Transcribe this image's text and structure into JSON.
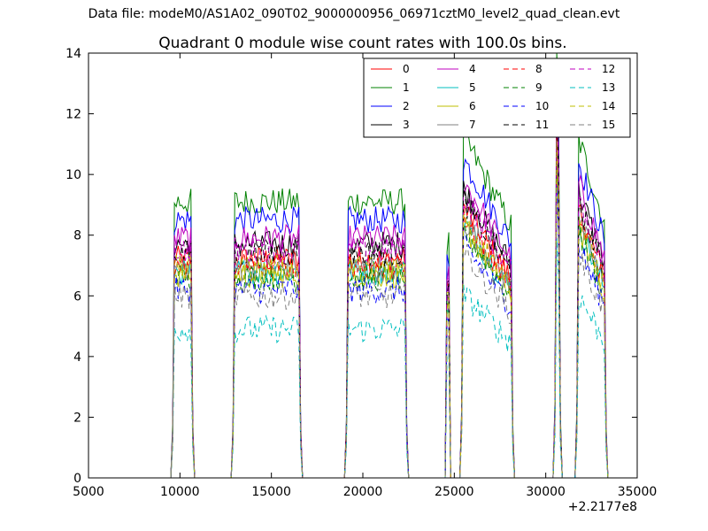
{
  "page": {
    "data_file_label": "Data file: modeM0/AS1A02_090T02_9000000956_06971cztM0_level2_quad_clean.evt"
  },
  "chart_data": {
    "type": "line",
    "title": "Quadrant 0 module wise count rates with 100.0s bins.",
    "xlabel": "",
    "ylabel": "",
    "x_offset_label": "+2.2177e8",
    "xlim": [
      5000,
      35000
    ],
    "ylim": [
      0,
      14
    ],
    "xticks": [
      5000,
      10000,
      15000,
      20000,
      25000,
      30000,
      35000
    ],
    "xtick_labels": [
      "5000",
      "10000",
      "15000",
      "20000",
      "25000",
      "30000",
      "35000"
    ],
    "yticks": [
      0,
      2,
      4,
      6,
      8,
      10,
      12,
      14
    ],
    "ytick_labels": [
      "0",
      "2",
      "4",
      "6",
      "8",
      "10",
      "12",
      "14"
    ],
    "grid": false,
    "legend_position": "top-right",
    "segments": [
      {
        "start": 9600,
        "end": 10700,
        "profile": "flat"
      },
      {
        "start": 12900,
        "end": 16600,
        "profile": "flat"
      },
      {
        "start": 19100,
        "end": 22400,
        "profile": "flat"
      },
      {
        "start": 24600,
        "end": 24700,
        "profile": "spike"
      },
      {
        "start": 25400,
        "end": 28200,
        "profile": "decay"
      },
      {
        "start": 30500,
        "end": 30800,
        "profile": "flare"
      },
      {
        "start": 31700,
        "end": 33300,
        "profile": "decay"
      }
    ],
    "series": [
      {
        "name": "0",
        "color": "#ff0000",
        "dash": "solid",
        "level": 7.2
      },
      {
        "name": "1",
        "color": "#008000",
        "dash": "solid",
        "level": 9.1
      },
      {
        "name": "2",
        "color": "#0000ff",
        "dash": "solid",
        "level": 8.5
      },
      {
        "name": "3",
        "color": "#000000",
        "dash": "solid",
        "level": 7.7
      },
      {
        "name": "4",
        "color": "#bf00bf",
        "dash": "solid",
        "level": 7.9
      },
      {
        "name": "5",
        "color": "#00bfbf",
        "dash": "solid",
        "level": 6.8
      },
      {
        "name": "6",
        "color": "#bfbf00",
        "dash": "solid",
        "level": 6.7
      },
      {
        "name": "7",
        "color": "#808080",
        "dash": "solid",
        "level": 6.9
      },
      {
        "name": "8",
        "color": "#ff0000",
        "dash": "dashed",
        "level": 7.0
      },
      {
        "name": "9",
        "color": "#008000",
        "dash": "dashed",
        "level": 6.6
      },
      {
        "name": "10",
        "color": "#0000ff",
        "dash": "dashed",
        "level": 6.2
      },
      {
        "name": "11",
        "color": "#000000",
        "dash": "dashed",
        "level": 7.4
      },
      {
        "name": "12",
        "color": "#bf00bf",
        "dash": "dashed",
        "level": 7.5
      },
      {
        "name": "13",
        "color": "#00bfbf",
        "dash": "dashed",
        "level": 4.9
      },
      {
        "name": "14",
        "color": "#bfbf00",
        "dash": "dashed",
        "level": 6.9
      },
      {
        "name": "15",
        "color": "#808080",
        "dash": "dashed",
        "level": 6.0
      }
    ]
  }
}
